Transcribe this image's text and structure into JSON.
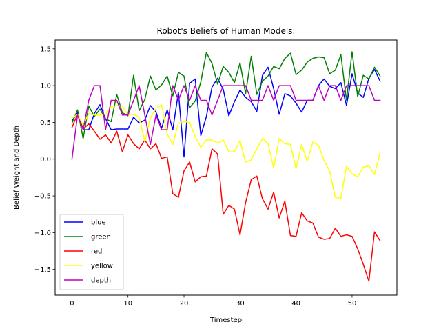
{
  "chart_data": {
    "type": "line",
    "title": "Robot's Beliefs of Human Models:",
    "xlabel": "Timestep",
    "ylabel": "Belief Weight and Depth",
    "xlim": [
      -3,
      58
    ],
    "ylim": [
      -1.85,
      1.62
    ],
    "xticks": [
      0,
      10,
      20,
      30,
      40,
      50
    ],
    "yticks": [
      -1.5,
      -1.0,
      -0.5,
      0.0,
      0.5,
      1.0,
      1.5
    ],
    "ytick_labels": [
      "−1.5",
      "−1.0",
      "−0.5",
      "0.0",
      "0.5",
      "1.0",
      "1.5"
    ],
    "grid": false,
    "legend_position": "lower-left",
    "x": [
      0,
      1,
      2,
      3,
      4,
      5,
      6,
      7,
      8,
      9,
      10,
      11,
      12,
      13,
      14,
      15,
      16,
      17,
      18,
      19,
      20,
      21,
      22,
      23,
      24,
      25,
      26,
      27,
      28,
      29,
      30,
      31,
      32,
      33,
      34,
      35,
      36,
      37,
      38,
      39,
      40,
      41,
      42,
      43,
      44,
      45,
      46,
      47,
      48,
      49,
      50,
      51,
      52,
      53,
      54,
      55
    ],
    "series": [
      {
        "name": "blue",
        "color": "#0000ff",
        "values": [
          0.52,
          0.63,
          0.4,
          0.4,
          0.62,
          0.74,
          0.55,
          0.4,
          0.41,
          0.41,
          0.41,
          0.57,
          0.49,
          0.53,
          0.73,
          0.64,
          0.42,
          0.67,
          0.4,
          0.91,
          0.03,
          1.03,
          1.09,
          0.32,
          0.58,
          0.98,
          1.1,
          0.95,
          0.59,
          0.78,
          0.94,
          0.84,
          0.78,
          0.65,
          1.14,
          1.25,
          0.96,
          0.61,
          0.89,
          0.86,
          0.76,
          0.64,
          0.8,
          0.8,
          1.0,
          1.09,
          0.99,
          0.96,
          1.04,
          0.73,
          1.16,
          0.9,
          0.84,
          1.1,
          1.22,
          1.06
        ]
      },
      {
        "name": "green",
        "color": "#008000",
        "values": [
          0.49,
          0.67,
          0.28,
          0.72,
          0.58,
          0.68,
          0.55,
          0.51,
          0.88,
          0.63,
          0.59,
          1.14,
          0.66,
          0.81,
          1.13,
          0.94,
          1.01,
          1.13,
          0.86,
          1.18,
          1.13,
          0.7,
          0.79,
          1.05,
          1.45,
          1.3,
          1.02,
          1.26,
          1.18,
          1.04,
          1.31,
          0.89,
          1.4,
          0.88,
          1.06,
          1.13,
          1.26,
          1.23,
          1.37,
          1.44,
          1.15,
          1.21,
          1.32,
          1.37,
          1.39,
          1.38,
          1.16,
          1.21,
          1.42,
          0.8,
          1.46,
          0.85,
          1.14,
          1.09,
          1.25,
          1.13
        ]
      },
      {
        "name": "red",
        "color": "#ff0000",
        "values": [
          0.43,
          0.61,
          0.41,
          0.48,
          0.38,
          0.27,
          0.33,
          0.22,
          0.38,
          0.1,
          0.33,
          0.21,
          0.14,
          0.26,
          0.14,
          0.21,
          0.01,
          0.03,
          -0.47,
          -0.52,
          -0.16,
          -0.04,
          -0.31,
          -0.24,
          -0.23,
          0.14,
          0.07,
          -0.75,
          -0.63,
          -0.68,
          -1.03,
          -0.59,
          -0.28,
          -0.23,
          -0.54,
          -0.68,
          -0.45,
          -0.8,
          -0.57,
          -1.04,
          -1.05,
          -0.73,
          -0.84,
          -0.87,
          -1.06,
          -1.09,
          -1.08,
          -0.94,
          -1.05,
          -1.03,
          -1.05,
          -1.22,
          -1.43,
          -1.66,
          -0.99,
          -1.11
        ]
      },
      {
        "name": "yellow",
        "color": "#ffff00",
        "values": [
          0.56,
          0.61,
          0.46,
          0.62,
          0.6,
          0.6,
          0.61,
          0.71,
          0.73,
          0.72,
          0.6,
          0.61,
          0.57,
          0.24,
          0.56,
          0.69,
          0.74,
          0.34,
          0.2,
          0.49,
          0.51,
          0.5,
          0.31,
          0.16,
          0.26,
          0.26,
          0.22,
          0.26,
          0.1,
          0.1,
          0.25,
          -0.04,
          -0.01,
          0.14,
          0.28,
          0.21,
          -0.12,
          0.28,
          0.21,
          0.2,
          -0.13,
          0.2,
          -0.03,
          0.23,
          0.19,
          -0.02,
          -0.16,
          -0.52,
          -0.53,
          -0.1,
          -0.2,
          -0.24,
          -0.11,
          -0.09,
          -0.21,
          0.09
        ]
      },
      {
        "name": "depth",
        "color": "#bf00bf",
        "values": [
          0.0,
          0.6,
          0.4,
          0.8,
          1.0,
          1.0,
          0.4,
          0.8,
          0.8,
          0.6,
          0.6,
          0.8,
          1.0,
          0.6,
          0.2,
          0.6,
          0.4,
          0.4,
          1.0,
          0.8,
          1.0,
          0.8,
          1.0,
          0.8,
          0.8,
          0.6,
          0.8,
          1.0,
          1.0,
          1.0,
          1.0,
          1.0,
          0.8,
          0.8,
          0.8,
          1.0,
          0.8,
          1.0,
          1.0,
          1.0,
          0.8,
          0.8,
          0.8,
          0.8,
          1.0,
          0.8,
          1.0,
          1.0,
          0.8,
          1.0,
          1.0,
          1.0,
          1.0,
          1.0,
          0.8,
          0.8
        ]
      }
    ]
  }
}
